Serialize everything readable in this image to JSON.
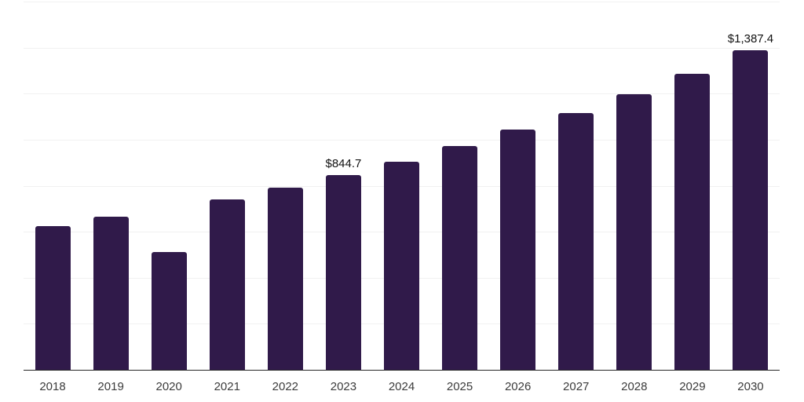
{
  "chart": {
    "background_color": "#ffffff",
    "bar_color": "#301a4a",
    "gridline_color": "#f1f1f1",
    "axis_line_color": "#262626",
    "tick_label_color": "#3b3b3b",
    "data_label_color": "#111111"
  },
  "chart_data": {
    "type": "bar",
    "title": "",
    "xlabel": "",
    "ylabel": "",
    "categories": [
      "2018",
      "2019",
      "2020",
      "2021",
      "2022",
      "2023",
      "2024",
      "2025",
      "2026",
      "2027",
      "2028",
      "2029",
      "2030"
    ],
    "values": [
      625,
      665,
      513,
      740,
      790,
      844.7,
      903,
      971,
      1043,
      1114,
      1199,
      1287,
      1387.4
    ],
    "data_labels": [
      {
        "category": "2023",
        "text": "$844.7"
      },
      {
        "category": "2030",
        "text": "$1,387.4"
      }
    ],
    "ylim": [
      0,
      1600
    ],
    "gridline_step": 200,
    "grid": true,
    "legend": false,
    "y_axis_ticks_visible": false
  }
}
